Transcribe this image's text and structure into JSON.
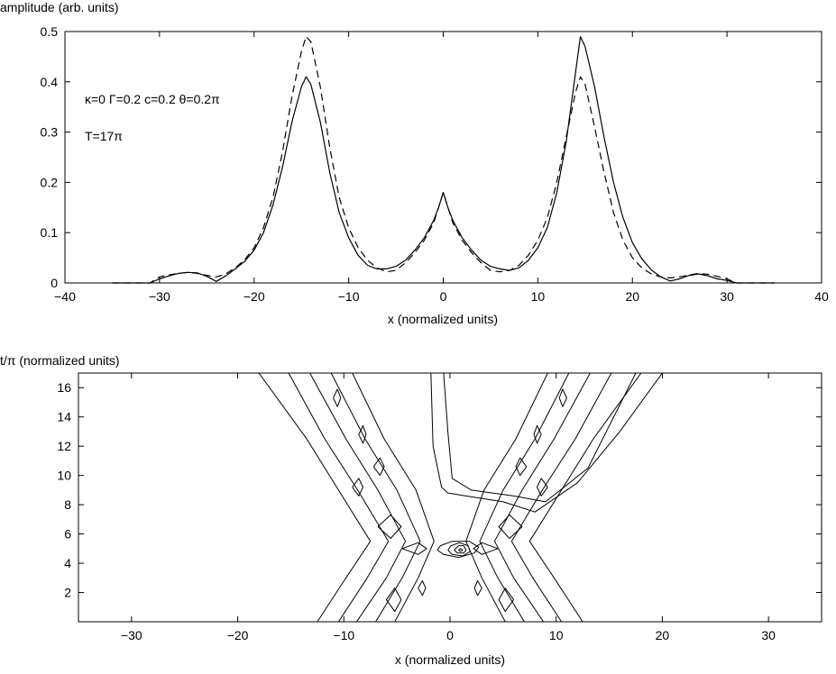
{
  "chart_data": [
    {
      "type": "line",
      "ylabel": "amplitude (arb. units)",
      "xlabel": "x (normalized units)",
      "xlim": [
        -40,
        40
      ],
      "ylim": [
        0,
        0.5
      ],
      "xticks": [
        -40,
        -30,
        -20,
        -10,
        0,
        10,
        20,
        30,
        40
      ],
      "yticks": [
        0,
        0.1,
        0.2,
        0.3,
        0.4,
        0.5
      ],
      "xtick_labels": [
        "−40",
        "−30",
        "−20",
        "−10",
        "0",
        "10",
        "20",
        "30",
        "40"
      ],
      "ytick_labels": [
        "0",
        "0.1",
        "0.2",
        "0.3",
        "0.4",
        "0.5"
      ],
      "grid": false,
      "annotations": [
        "κ=0  Γ=0.2  c=0.2  θ=0.2π",
        "T=17π"
      ],
      "series": [
        {
          "style": "solid",
          "color": "#000000",
          "x": [
            -35,
            -31,
            -30,
            -29,
            -28,
            -27,
            -26,
            -25,
            -24,
            -23,
            -22,
            -21,
            -20,
            -19,
            -18,
            -17,
            -16,
            -15,
            -14.5,
            -14,
            -13,
            -12,
            -11,
            -10,
            -9,
            -8,
            -7,
            -6,
            -5,
            -4,
            -3,
            -2,
            -1,
            -0.5,
            0,
            0.5,
            1,
            2,
            3,
            4,
            5,
            6,
            7,
            8,
            9,
            10,
            11,
            12,
            13,
            14,
            14.5,
            15,
            16,
            17,
            18,
            19,
            20,
            21,
            22,
            23,
            24,
            25,
            26,
            27,
            28,
            29,
            30,
            31,
            35
          ],
          "y": [
            0,
            0,
            0.008,
            0.014,
            0.019,
            0.021,
            0.02,
            0.013,
            0.003,
            0.014,
            0.028,
            0.043,
            0.065,
            0.1,
            0.155,
            0.23,
            0.32,
            0.39,
            0.41,
            0.395,
            0.32,
            0.22,
            0.14,
            0.09,
            0.055,
            0.035,
            0.028,
            0.028,
            0.033,
            0.045,
            0.065,
            0.09,
            0.125,
            0.15,
            0.18,
            0.15,
            0.125,
            0.09,
            0.065,
            0.045,
            0.033,
            0.028,
            0.025,
            0.03,
            0.045,
            0.07,
            0.11,
            0.18,
            0.28,
            0.42,
            0.49,
            0.47,
            0.39,
            0.29,
            0.2,
            0.13,
            0.08,
            0.048,
            0.026,
            0.012,
            0.004,
            0.008,
            0.015,
            0.018,
            0.014,
            0.008,
            0.005,
            0,
            0
          ]
        },
        {
          "style": "dashed",
          "color": "#000000",
          "x": [
            -35,
            -31,
            -30,
            -29,
            -28,
            -27,
            -26,
            -25,
            -24,
            -23,
            -22,
            -21,
            -20,
            -19,
            -18,
            -17,
            -16,
            -15,
            -14.5,
            -14,
            -13,
            -12,
            -11,
            -10,
            -9,
            -8,
            -7,
            -6,
            -5,
            -4,
            -3,
            -2,
            -1,
            -0.5,
            0,
            0.5,
            1,
            2,
            3,
            4,
            5,
            6,
            7,
            8,
            9,
            10,
            11,
            12,
            13,
            14,
            14.5,
            15,
            16,
            17,
            18,
            19,
            20,
            21,
            22,
            23,
            24,
            25,
            26,
            27,
            28,
            29,
            30,
            31,
            35
          ],
          "y": [
            0,
            0,
            0.012,
            0.016,
            0.019,
            0.021,
            0.019,
            0.015,
            0.012,
            0.018,
            0.03,
            0.046,
            0.07,
            0.11,
            0.17,
            0.26,
            0.37,
            0.46,
            0.49,
            0.48,
            0.39,
            0.27,
            0.17,
            0.11,
            0.07,
            0.045,
            0.03,
            0.022,
            0.025,
            0.04,
            0.06,
            0.085,
            0.12,
            0.15,
            0.18,
            0.15,
            0.12,
            0.085,
            0.06,
            0.04,
            0.025,
            0.022,
            0.025,
            0.035,
            0.055,
            0.085,
            0.13,
            0.2,
            0.29,
            0.38,
            0.41,
            0.395,
            0.31,
            0.22,
            0.14,
            0.085,
            0.05,
            0.03,
            0.018,
            0.012,
            0.01,
            0.012,
            0.016,
            0.019,
            0.017,
            0.013,
            0.008,
            0,
            0
          ]
        }
      ]
    },
    {
      "type": "contour",
      "ylabel": "t/π (normalized units)",
      "xlabel": "x (normalized units)",
      "xlim": [
        -35,
        35
      ],
      "ylim": [
        0,
        17
      ],
      "xticks": [
        -30,
        -20,
        -10,
        0,
        10,
        20,
        30
      ],
      "yticks": [
        2,
        4,
        6,
        8,
        10,
        12,
        14,
        16
      ],
      "xtick_labels": [
        "−30",
        "−20",
        "−10",
        "0",
        "10",
        "20",
        "30"
      ],
      "ytick_labels": [
        "2",
        "4",
        "6",
        "8",
        "10",
        "12",
        "14",
        "16"
      ],
      "grid": false,
      "color": "#000000",
      "lines": [
        [
          [
            -12.5,
            0
          ],
          [
            -9.8,
            3.0
          ],
          [
            -7.5,
            5.5
          ],
          [
            -10.5,
            9.0
          ],
          [
            -13.5,
            12.5
          ],
          [
            -18,
            17
          ]
        ],
        [
          [
            -10.5,
            0
          ],
          [
            -7.8,
            3.0
          ],
          [
            -5.8,
            5.5
          ],
          [
            -8.7,
            9.0
          ],
          [
            -11.8,
            12.5
          ],
          [
            -15.2,
            17
          ]
        ],
        [
          [
            -8.8,
            0
          ],
          [
            -6.0,
            3.0
          ],
          [
            -4.2,
            5.5
          ],
          [
            -6.8,
            9.0
          ],
          [
            -9.8,
            12.5
          ],
          [
            -13.2,
            17
          ]
        ],
        [
          [
            -7.0,
            0
          ],
          [
            -4.5,
            3.0
          ],
          [
            -2.8,
            5.5
          ],
          [
            -5.0,
            9.0
          ],
          [
            -8.0,
            12.5
          ],
          [
            -11.2,
            17
          ]
        ],
        [
          [
            -5.2,
            0
          ],
          [
            -3.0,
            3.0
          ],
          [
            -1.5,
            5.5
          ],
          [
            -3.2,
            9.0
          ],
          [
            -6.2,
            12.5
          ],
          [
            -9.2,
            17
          ]
        ],
        [
          [
            12.5,
            0
          ],
          [
            9.8,
            3.0
          ],
          [
            7.5,
            5.5
          ],
          [
            10.5,
            9.0
          ],
          [
            13.5,
            12.5
          ],
          [
            18,
            17
          ]
        ],
        [
          [
            10.5,
            0
          ],
          [
            7.8,
            3.0
          ],
          [
            5.8,
            5.5
          ],
          [
            8.7,
            9.0
          ],
          [
            11.8,
            12.5
          ],
          [
            15.2,
            17
          ]
        ],
        [
          [
            8.8,
            0
          ],
          [
            6.0,
            3.0
          ],
          [
            4.2,
            5.5
          ],
          [
            6.8,
            9.0
          ],
          [
            9.8,
            12.5
          ],
          [
            13.2,
            17
          ]
        ],
        [
          [
            7.0,
            0
          ],
          [
            4.5,
            3.0
          ],
          [
            2.8,
            5.5
          ],
          [
            5.0,
            9.0
          ],
          [
            8.0,
            12.5
          ],
          [
            11.2,
            17
          ]
        ],
        [
          [
            5.2,
            0
          ],
          [
            3.0,
            3.0
          ],
          [
            1.5,
            5.5
          ],
          [
            3.2,
            9.0
          ],
          [
            6.2,
            12.5
          ],
          [
            9.2,
            17
          ]
        ],
        [
          [
            -1.8,
            17
          ],
          [
            -1.6,
            12
          ],
          [
            -0.8,
            9.2
          ],
          [
            -0.2,
            8.8
          ],
          [
            1.5,
            8.6
          ],
          [
            5,
            8.2
          ],
          [
            8,
            7.5
          ],
          [
            12,
            9.5
          ],
          [
            16,
            13
          ],
          [
            20,
            17
          ]
        ],
        [
          [
            -0.6,
            17
          ],
          [
            -0.2,
            13
          ],
          [
            0.2,
            9.8
          ],
          [
            2,
            9.0
          ],
          [
            6,
            8.6
          ],
          [
            9,
            8.2
          ],
          [
            13,
            10.5
          ],
          [
            17.5,
            17
          ]
        ],
        [
          [
            -1.2,
            4.9
          ],
          [
            -0.6,
            4.6
          ],
          [
            0.8,
            4.4
          ],
          [
            2.3,
            4.7
          ],
          [
            2.7,
            5.1
          ],
          [
            1.8,
            5.5
          ],
          [
            0.2,
            5.5
          ],
          [
            -0.9,
            5.2
          ],
          [
            -1.2,
            4.9
          ]
        ],
        [
          [
            -0.2,
            4.9
          ],
          [
            0.2,
            4.6
          ],
          [
            1.2,
            4.5
          ],
          [
            1.9,
            4.8
          ],
          [
            1.7,
            5.2
          ],
          [
            0.9,
            5.4
          ],
          [
            0.1,
            5.2
          ],
          [
            -0.2,
            4.9
          ]
        ],
        [
          [
            0.4,
            4.9
          ],
          [
            0.7,
            4.7
          ],
          [
            1.3,
            4.7
          ],
          [
            1.5,
            4.9
          ],
          [
            1.3,
            5.2
          ],
          [
            0.8,
            5.2
          ],
          [
            0.4,
            4.9
          ]
        ],
        [
          [
            0.8,
            4.9
          ],
          [
            1.0,
            4.8
          ],
          [
            1.2,
            4.9
          ],
          [
            1.0,
            5.0
          ],
          [
            0.8,
            4.9
          ]
        ],
        [
          [
            -4.5,
            5.0
          ],
          [
            -3.0,
            5.4
          ],
          [
            -2.2,
            5.0
          ],
          [
            -3.0,
            4.6
          ],
          [
            -4.5,
            5.0
          ]
        ],
        [
          [
            4.5,
            5.0
          ],
          [
            3.0,
            5.4
          ],
          [
            2.2,
            5.0
          ],
          [
            3.0,
            4.6
          ],
          [
            4.5,
            5.0
          ]
        ],
        [
          [
            -6.0,
            1.5
          ],
          [
            -5.2,
            2.3
          ],
          [
            -4.6,
            1.5
          ],
          [
            -5.2,
            0.7
          ],
          [
            -6.0,
            1.5
          ]
        ],
        [
          [
            6.0,
            1.5
          ],
          [
            5.2,
            2.3
          ],
          [
            4.6,
            1.5
          ],
          [
            5.2,
            0.7
          ],
          [
            6.0,
            1.5
          ]
        ],
        [
          [
            -7.2,
            10.6
          ],
          [
            -6.6,
            11.2
          ],
          [
            -6.2,
            10.6
          ],
          [
            -6.6,
            10.0
          ],
          [
            -7.2,
            10.6
          ]
        ],
        [
          [
            7.2,
            10.6
          ],
          [
            6.6,
            11.2
          ],
          [
            6.2,
            10.6
          ],
          [
            6.6,
            10.0
          ],
          [
            7.2,
            10.6
          ]
        ],
        [
          [
            -11.0,
            15.3
          ],
          [
            -10.6,
            15.9
          ],
          [
            -10.3,
            15.3
          ],
          [
            -10.6,
            14.7
          ],
          [
            -11.0,
            15.3
          ]
        ],
        [
          [
            11.0,
            15.3
          ],
          [
            10.6,
            15.9
          ],
          [
            10.3,
            15.3
          ],
          [
            10.6,
            14.7
          ],
          [
            11.0,
            15.3
          ]
        ],
        [
          [
            -6.8,
            6.5
          ],
          [
            -5.6,
            7.3
          ],
          [
            -4.6,
            6.5
          ],
          [
            -5.6,
            5.7
          ],
          [
            -6.8,
            6.5
          ]
        ],
        [
          [
            6.8,
            6.5
          ],
          [
            5.6,
            7.3
          ],
          [
            4.6,
            6.5
          ],
          [
            5.6,
            5.7
          ],
          [
            6.8,
            6.5
          ]
        ],
        [
          [
            -9.2,
            9.2
          ],
          [
            -8.6,
            9.8
          ],
          [
            -8.2,
            9.2
          ],
          [
            -8.6,
            8.6
          ],
          [
            -9.2,
            9.2
          ]
        ],
        [
          [
            9.2,
            9.2
          ],
          [
            8.6,
            9.8
          ],
          [
            8.2,
            9.2
          ],
          [
            8.6,
            8.6
          ],
          [
            9.2,
            9.2
          ]
        ],
        [
          [
            -8.6,
            12.8
          ],
          [
            -8.2,
            13.4
          ],
          [
            -7.9,
            12.8
          ],
          [
            -8.2,
            12.2
          ],
          [
            -8.6,
            12.8
          ]
        ],
        [
          [
            8.6,
            12.8
          ],
          [
            8.2,
            13.4
          ],
          [
            7.9,
            12.8
          ],
          [
            8.2,
            12.2
          ],
          [
            8.6,
            12.8
          ]
        ],
        [
          [
            -3.0,
            2.3
          ],
          [
            -2.6,
            2.8
          ],
          [
            -2.3,
            2.3
          ],
          [
            -2.6,
            1.8
          ],
          [
            -3.0,
            2.3
          ]
        ],
        [
          [
            3.0,
            2.3
          ],
          [
            2.6,
            2.8
          ],
          [
            2.3,
            2.3
          ],
          [
            2.6,
            1.8
          ],
          [
            3.0,
            2.3
          ]
        ]
      ]
    }
  ]
}
